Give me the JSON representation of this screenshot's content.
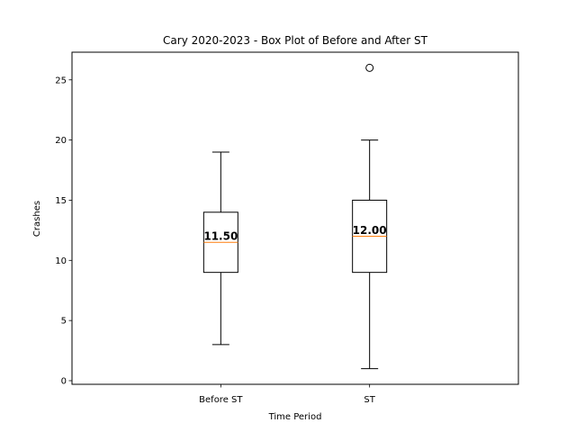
{
  "chart_data": {
    "type": "box",
    "title": "Cary 2020-2023 - Box Plot of Before and After ST",
    "xlabel": "Time Period",
    "ylabel": "Crashes",
    "ylim": [
      -0.3,
      27.3
    ],
    "yticks": [
      0,
      5,
      10,
      15,
      20,
      25
    ],
    "grid": false,
    "colors": {
      "box": "#000000",
      "median": "#ff7f0e",
      "whisker": "#000000",
      "flier": "#000000"
    },
    "boxes": [
      {
        "label": "Before ST",
        "whisker_low": 3,
        "q1": 9,
        "median": 11.5,
        "q3": 14,
        "whisker_high": 19,
        "fliers": [],
        "median_label": "11.50"
      },
      {
        "label": "ST",
        "whisker_low": 1,
        "q1": 9,
        "median": 12,
        "q3": 15,
        "whisker_high": 20,
        "fliers": [
          26
        ],
        "median_label": "12.00"
      }
    ]
  }
}
